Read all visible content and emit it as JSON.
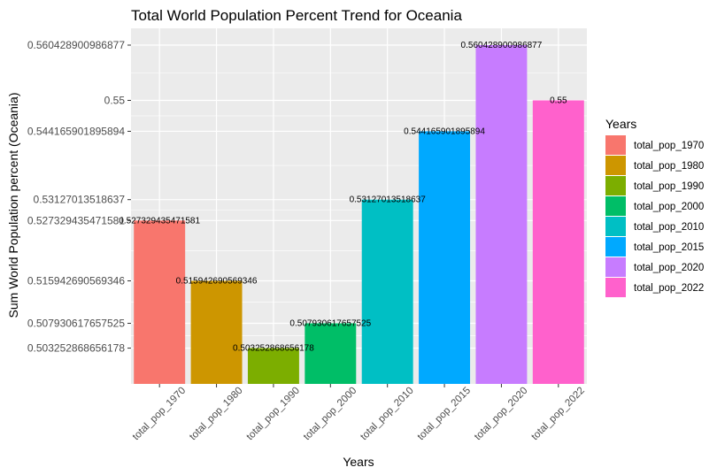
{
  "chart_data": {
    "type": "bar",
    "title": "Total World Population Percent Trend for Oceania",
    "xlabel": "Years",
    "ylabel": "Sum World Population percent (Oceania)",
    "categories": [
      "total_pop_1970",
      "total_pop_1980",
      "total_pop_1990",
      "total_pop_2000",
      "total_pop_2010",
      "total_pop_2015",
      "total_pop_2020",
      "total_pop_2022"
    ],
    "values": [
      0.527329435471581,
      0.515942690569346,
      0.503252868656178,
      0.507930617657525,
      0.53127013518637,
      0.544165901895894,
      0.560428900986877,
      0.55
    ],
    "data_labels": [
      "0.527329435471581",
      "0.515942690569346",
      "0.503252868656178",
      "0.507930617657525",
      "0.53127013518637",
      "0.544165901895894",
      "0.560428900986877",
      "0.55"
    ],
    "y_ticks": [
      {
        "value": 0.503252868656178,
        "label": "0.503252868656178"
      },
      {
        "value": 0.507930617657525,
        "label": "0.507930617657525"
      },
      {
        "value": 0.515942690569346,
        "label": "0.515942690569346"
      },
      {
        "value": 0.527329435471581,
        "label": "0.527329435471581"
      },
      {
        "value": 0.53127013518637,
        "label": "0.53127013518637"
      },
      {
        "value": 0.544165901895894,
        "label": "0.544165901895894"
      },
      {
        "value": 0.55,
        "label": "0.55"
      },
      {
        "value": 0.560428900986877,
        "label": "0.560428900986877"
      }
    ],
    "ylim": [
      0.4965,
      0.5636
    ],
    "colors": [
      "#F8766D",
      "#CD9600",
      "#7CAE00",
      "#00BE67",
      "#00BFC4",
      "#00A9FF",
      "#C77CFF",
      "#FF61CC"
    ],
    "panel_background": "#EBEBEB",
    "grid": true,
    "legend": {
      "title": "Years",
      "position": "right",
      "entries": [
        "total_pop_1970",
        "total_pop_1980",
        "total_pop_1990",
        "total_pop_2000",
        "total_pop_2010",
        "total_pop_2015",
        "total_pop_2020",
        "total_pop_2022"
      ]
    }
  }
}
